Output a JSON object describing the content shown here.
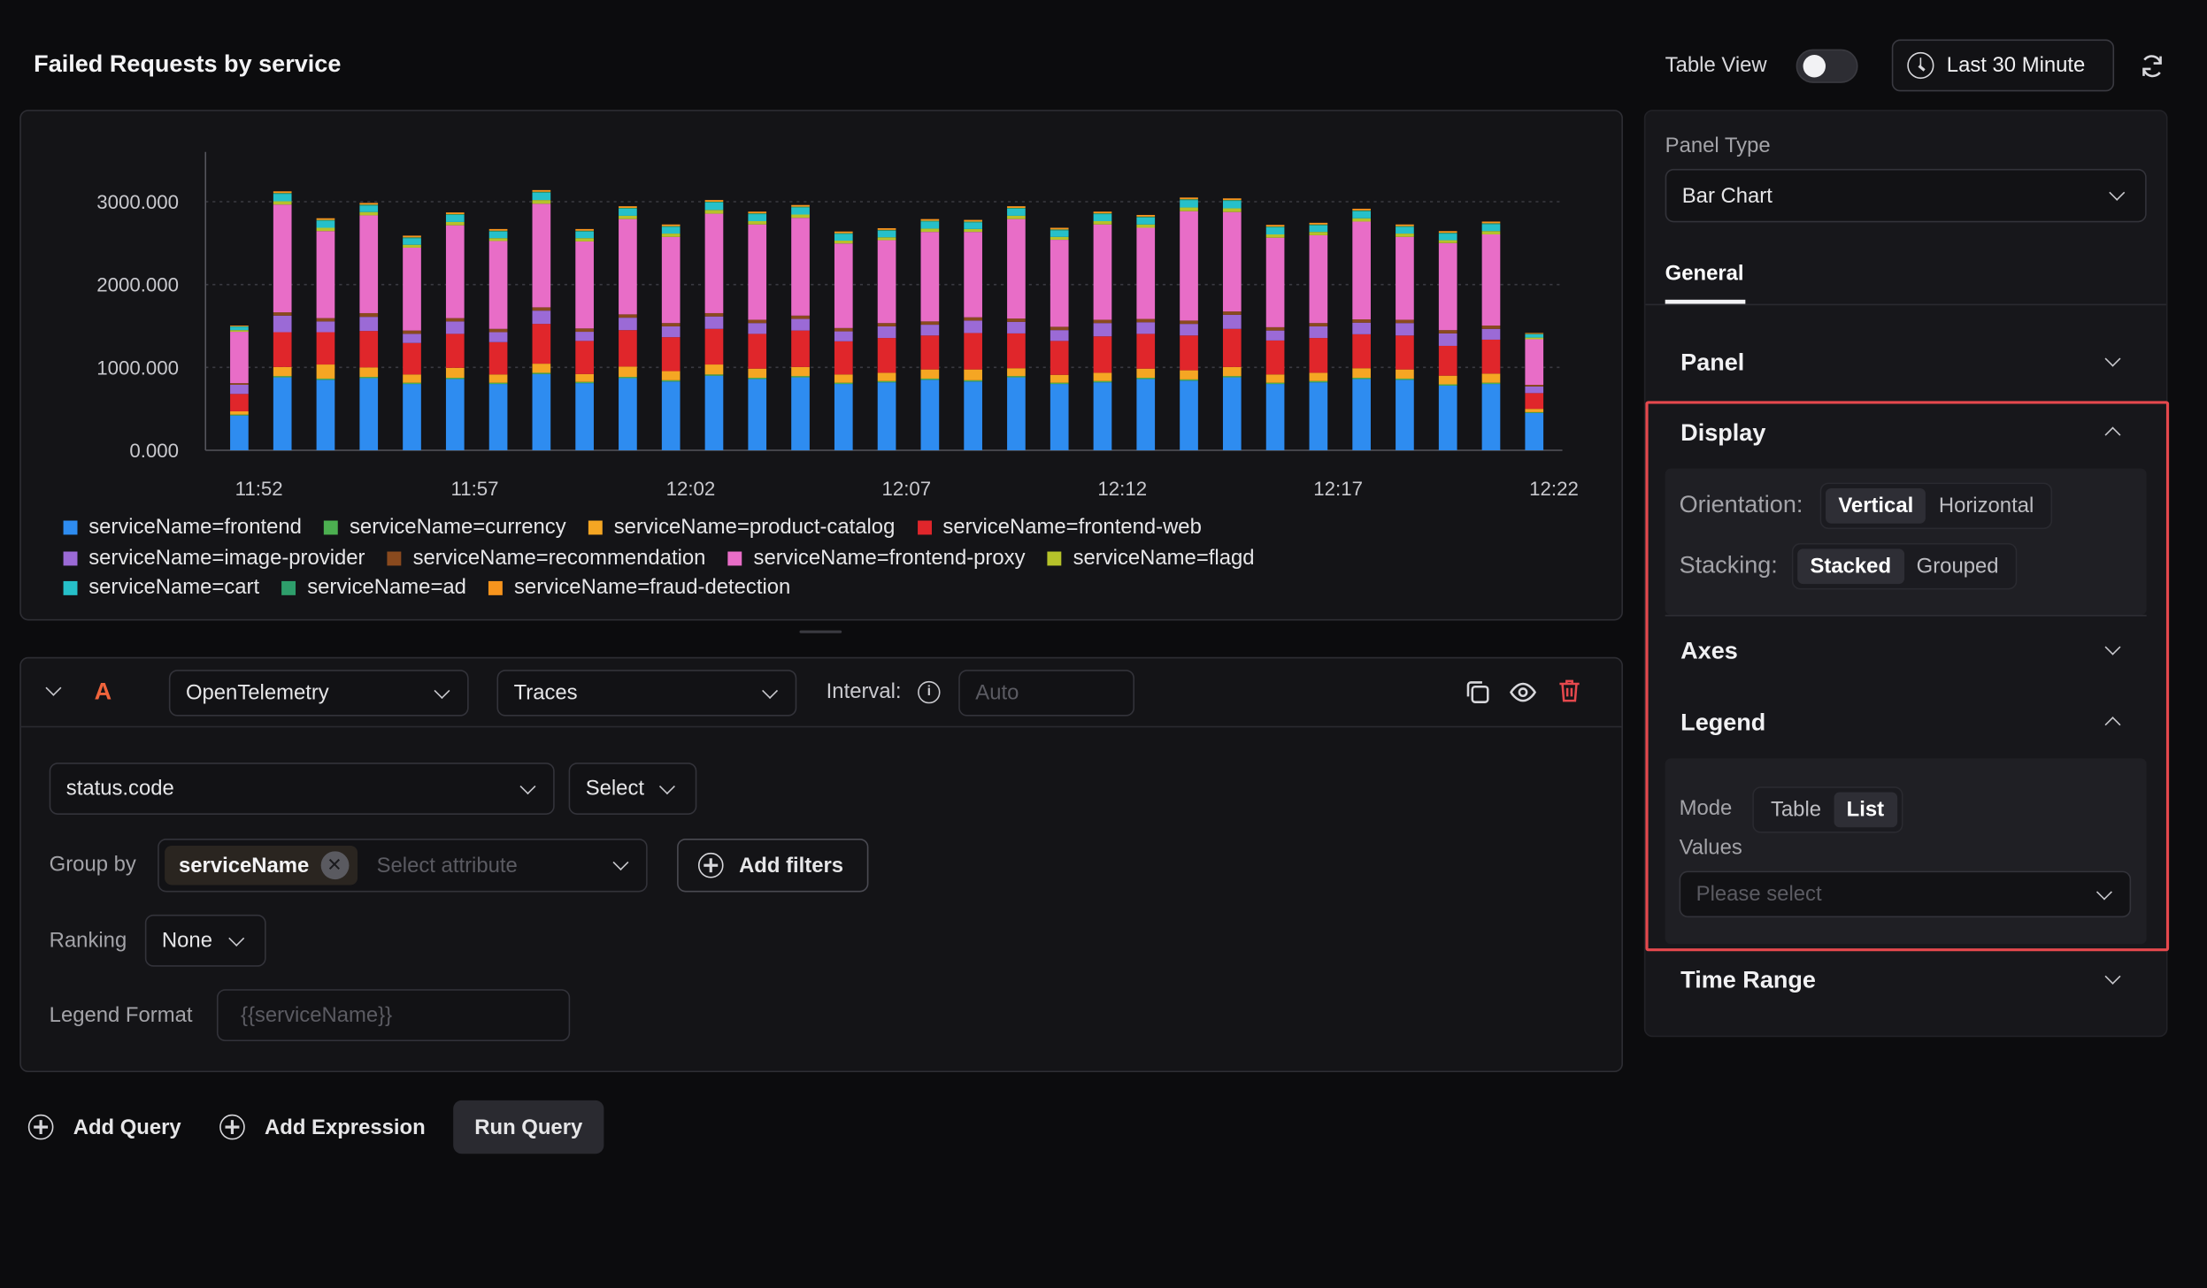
{
  "header": {
    "title": "Failed Requests by service",
    "table_view_label": "Table View",
    "time_range_label": "Last 30 Minute"
  },
  "chart_data": {
    "type": "bar",
    "stacked": true,
    "orientation": "vertical",
    "ylim": [
      0,
      3600
    ],
    "y_ticks": [
      "0.000",
      "1000.000",
      "2000.000",
      "3000.000"
    ],
    "x_ticks": [
      "11:52",
      "11:57",
      "12:02",
      "12:07",
      "12:12",
      "12:17",
      "12:22"
    ],
    "grid": true,
    "legend_position": "bottom",
    "series": [
      {
        "name": "serviceName=frontend",
        "color": "#2e8cf0",
        "values": [
          420,
          880,
          850,
          870,
          800,
          860,
          800,
          920,
          810,
          870,
          830,
          900,
          860,
          880,
          800,
          820,
          850,
          830,
          880,
          800,
          820,
          860,
          840,
          880,
          800,
          820,
          860,
          850,
          780,
          800,
          450
        ]
      },
      {
        "name": "serviceName=currency",
        "color": "#4caf50",
        "values": [
          10,
          15,
          15,
          15,
          15,
          15,
          15,
          15,
          15,
          15,
          15,
          15,
          15,
          15,
          15,
          15,
          15,
          15,
          15,
          15,
          15,
          15,
          15,
          15,
          15,
          15,
          15,
          15,
          15,
          15,
          10
        ]
      },
      {
        "name": "serviceName=product-catalog",
        "color": "#f5a623",
        "values": [
          40,
          110,
          170,
          115,
          100,
          120,
          100,
          110,
          95,
          125,
          110,
          120,
          110,
          110,
          100,
          100,
          110,
          130,
          95,
          95,
          100,
          110,
          110,
          110,
          100,
          100,
          115,
          110,
          105,
          110,
          40
        ]
      },
      {
        "name": "serviceName=frontend-web",
        "color": "#e0262b",
        "values": [
          210,
          420,
          390,
          440,
          380,
          410,
          390,
          480,
          400,
          440,
          410,
          430,
          420,
          440,
          400,
          420,
          410,
          440,
          420,
          410,
          440,
          420,
          420,
          460,
          410,
          420,
          410,
          410,
          360,
          410,
          190
        ]
      },
      {
        "name": "serviceName=image-provider",
        "color": "#9b6ad6",
        "values": [
          110,
          200,
          130,
          170,
          110,
          150,
          120,
          160,
          110,
          150,
          130,
          150,
          130,
          140,
          120,
          140,
          130,
          150,
          140,
          130,
          160,
          140,
          140,
          170,
          120,
          140,
          140,
          150,
          150,
          130,
          80
        ]
      },
      {
        "name": "serviceName=recommendation",
        "color": "#8a4a1e",
        "values": [
          20,
          40,
          40,
          45,
          40,
          40,
          40,
          40,
          40,
          40,
          40,
          40,
          40,
          40,
          40,
          40,
          40,
          40,
          40,
          40,
          40,
          40,
          40,
          40,
          40,
          40,
          40,
          40,
          40,
          40,
          20
        ]
      },
      {
        "name": "serviceName=frontend-proxy",
        "color": "#e86dc7",
        "values": [
          620,
          1300,
          1050,
          1180,
          1000,
          1120,
          1060,
          1250,
          1050,
          1150,
          1040,
          1200,
          1150,
          1180,
          1020,
          1000,
          1080,
          1030,
          1200,
          1050,
          1150,
          1100,
          1320,
          1200,
          1080,
          1060,
          1180,
          1000,
          1050,
          1100,
          550
        ]
      },
      {
        "name": "serviceName=flagd",
        "color": "#b6c22a",
        "values": [
          20,
          40,
          40,
          40,
          35,
          40,
          35,
          45,
          40,
          40,
          40,
          45,
          40,
          40,
          35,
          35,
          40,
          35,
          40,
          35,
          40,
          40,
          45,
          45,
          40,
          40,
          40,
          40,
          35,
          40,
          20
        ]
      },
      {
        "name": "serviceName=cart",
        "color": "#26c0c9",
        "values": [
          40,
          90,
          85,
          80,
          80,
          85,
          80,
          90,
          80,
          85,
          80,
          90,
          85,
          85,
          80,
          80,
          85,
          80,
          85,
          80,
          85,
          85,
          90,
          90,
          85,
          80,
          85,
          80,
          80,
          85,
          40
        ]
      },
      {
        "name": "serviceName=ad",
        "color": "#2e9e6b",
        "values": [
          5,
          10,
          10,
          10,
          10,
          10,
          10,
          10,
          10,
          10,
          10,
          10,
          10,
          10,
          10,
          10,
          10,
          10,
          10,
          10,
          10,
          10,
          10,
          10,
          10,
          10,
          10,
          10,
          10,
          10,
          5
        ]
      },
      {
        "name": "serviceName=fraud-detection",
        "color": "#f7941d",
        "values": [
          10,
          20,
          20,
          20,
          20,
          20,
          20,
          20,
          20,
          20,
          20,
          20,
          20,
          20,
          20,
          20,
          20,
          20,
          20,
          20,
          20,
          20,
          20,
          20,
          20,
          20,
          20,
          20,
          20,
          20,
          10
        ]
      }
    ]
  },
  "query": {
    "letter": "A",
    "datasource": "OpenTelemetry",
    "signal": "Traces",
    "interval_label": "Interval:",
    "interval_placeholder": "Auto",
    "aggregate_attribute": "status.code",
    "aggregate_op": "Select",
    "group_by_label": "Group by",
    "group_by_chip": "serviceName",
    "group_by_placeholder": "Select attribute",
    "add_filters_label": "Add filters",
    "ranking_label": "Ranking",
    "ranking_value": "None",
    "legend_format_label": "Legend Format",
    "legend_format_placeholder": "{{serviceName}}"
  },
  "footer": {
    "add_query": "Add Query",
    "add_expression": "Add Expression",
    "run_query": "Run Query"
  },
  "settings": {
    "panel_type_label": "Panel Type",
    "panel_type_value": "Bar Chart",
    "tab_general": "General",
    "section_panel": "Panel",
    "section_display": "Display",
    "orientation_label": "Orientation:",
    "orientation_vertical": "Vertical",
    "orientation_horizontal": "Horizontal",
    "stacking_label": "Stacking:",
    "stacking_stacked": "Stacked",
    "stacking_grouped": "Grouped",
    "section_axes": "Axes",
    "section_legend": "Legend",
    "mode_label": "Mode",
    "mode_table": "Table",
    "mode_list": "List",
    "values_label": "Values",
    "values_placeholder": "Please select",
    "section_time_range": "Time Range"
  },
  "colors": {
    "accent_highlight": "#e5484d",
    "query_letter": "#f0643c"
  }
}
